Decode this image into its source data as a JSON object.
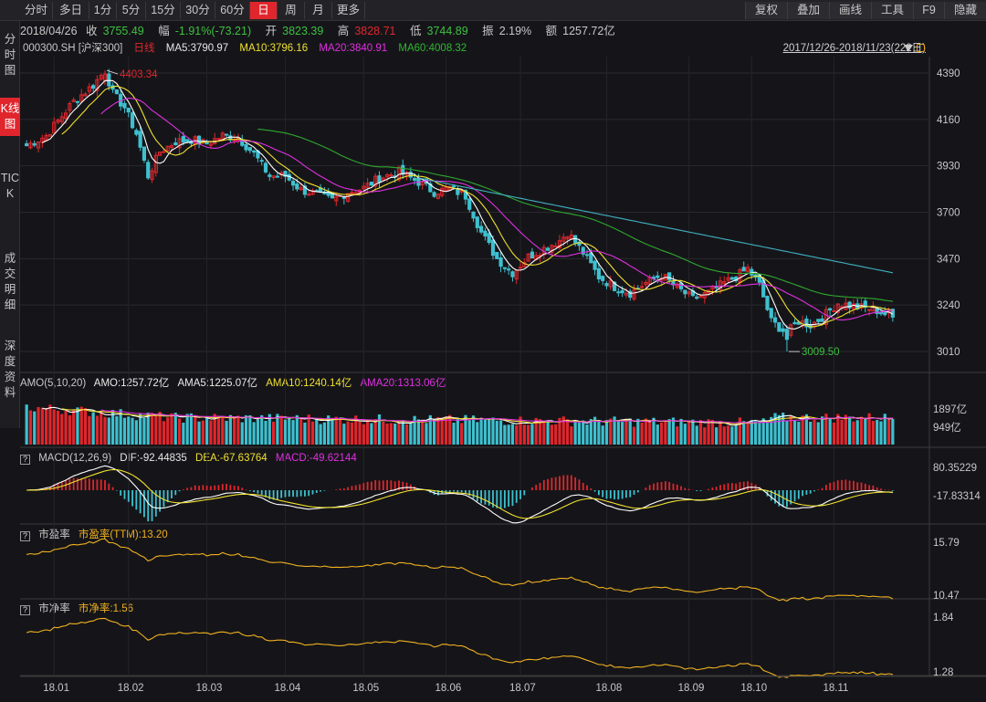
{
  "toolbar": {
    "periods": [
      {
        "label": "分时",
        "active": false
      },
      {
        "label": "多日",
        "active": false
      },
      {
        "label": "1分",
        "active": false
      },
      {
        "label": "5分",
        "active": false
      },
      {
        "label": "15分",
        "active": false
      },
      {
        "label": "30分",
        "active": false
      },
      {
        "label": "60分",
        "active": false
      },
      {
        "label": "日",
        "active": true
      },
      {
        "label": "周",
        "active": false
      },
      {
        "label": "月",
        "active": false
      },
      {
        "label": "更多",
        "active": false
      }
    ],
    "tools": [
      "复权",
      "叠加",
      "画线",
      "工具",
      "F9",
      "隐藏"
    ]
  },
  "left_nav": [
    {
      "label": "分时图",
      "active": false
    },
    {
      "label": "K线图",
      "active": true
    },
    {
      "label": "TICK",
      "active": false
    },
    {
      "label": "成交明细",
      "active": false
    },
    {
      "label": "深度资料",
      "active": false
    }
  ],
  "quote": {
    "date": "2018/04/26",
    "close_label": "收",
    "close": "3755.49",
    "change_label": "幅",
    "change": "-1.91%(-73.21)",
    "open_label": "开",
    "open": "3823.39",
    "high_label": "高",
    "high": "3828.71",
    "low_label": "低",
    "low": "3744.89",
    "amp_label": "振",
    "amplitude": "2.19%",
    "amount_label": "额",
    "amount": "1257.72亿"
  },
  "main_panel": {
    "symbol": "000300.SH [沪深300]",
    "period": "日线",
    "ma5": "MA5:3790.97",
    "ma10": "MA10:3796.16",
    "ma20": "MA20:3840.91",
    "ma60": "MA60:4008.32",
    "range": "2017/12/26-2018/11/23(222日)",
    "high_mark": "4403.34",
    "low_mark": "3009.50",
    "y_ticks": [
      "4390",
      "4160",
      "3930",
      "3700",
      "3470",
      "3240",
      "3010"
    ]
  },
  "volume_panel": {
    "name": "AMO(5,10,20)",
    "amo": "AMO:1257.72亿",
    "ama5": "AMA5:1225.07亿",
    "ama10": "AMA10:1240.14亿",
    "ama20": "AMA20:1313.06亿",
    "y_ticks": [
      "1897亿",
      "949亿"
    ]
  },
  "macd_panel": {
    "name": "MACD(12,26,9)",
    "dif": "DIF:-92.44835",
    "dea": "DEA:-67.63764",
    "macd": "MACD:-49.62144",
    "y_ticks": [
      "80.35229",
      "-17.83314"
    ]
  },
  "pe_panel": {
    "name": "市盈率",
    "value": "市盈率(TTM):13.20",
    "y_ticks": [
      "15.79",
      "10.47"
    ]
  },
  "pb_panel": {
    "name": "市净率",
    "value": "市净率:1.56",
    "y_ticks": [
      "1.84",
      "1.28"
    ]
  },
  "x_axis": [
    "18.01",
    "18.02",
    "18.03",
    "18.04",
    "18.05",
    "18.06",
    "18.07",
    "18.08",
    "18.09",
    "18.10",
    "18.11"
  ],
  "colors": {
    "up": "#e0262c",
    "down": "#3ec0cf",
    "ma5": "#ffffff",
    "ma10": "#f0e030",
    "ma20": "#e030e0",
    "ma60": "#2fa82f",
    "ma120": "#40b0c0",
    "accent": "#e0262c",
    "pe_line": "#f0b020"
  },
  "chart_data": {
    "type": "candlestick",
    "title": "000300.SH 沪深300 日线",
    "x_range": [
      "2017/12/26",
      "2018/11/23"
    ],
    "trading_days": 222,
    "y_range_visible": [
      3009.5,
      4403.34
    ],
    "key_points": [
      {
        "date": "2018/01/24",
        "value": 4403.34,
        "label": "high"
      },
      {
        "date": "2018/10/19",
        "value": 3009.5,
        "label": "low"
      }
    ],
    "close_path": [
      {
        "month": "18.01",
        "start": 4030,
        "end": 4260
      },
      {
        "month": "18.02",
        "start": 4260,
        "end": 4050
      },
      {
        "month": "18.03",
        "start": 4050,
        "end": 3900
      },
      {
        "month": "18.04",
        "start": 3900,
        "end": 3760
      },
      {
        "month": "18.05",
        "start": 3760,
        "end": 3820
      },
      {
        "month": "18.06",
        "start": 3820,
        "end": 3480
      },
      {
        "month": "18.07",
        "start": 3480,
        "end": 3520
      },
      {
        "month": "18.08",
        "start": 3520,
        "end": 3330
      },
      {
        "month": "18.09",
        "start": 3330,
        "end": 3440
      },
      {
        "month": "18.10",
        "start": 3440,
        "end": 3150
      },
      {
        "month": "18.11",
        "start": 3150,
        "end": 3180
      }
    ]
  }
}
